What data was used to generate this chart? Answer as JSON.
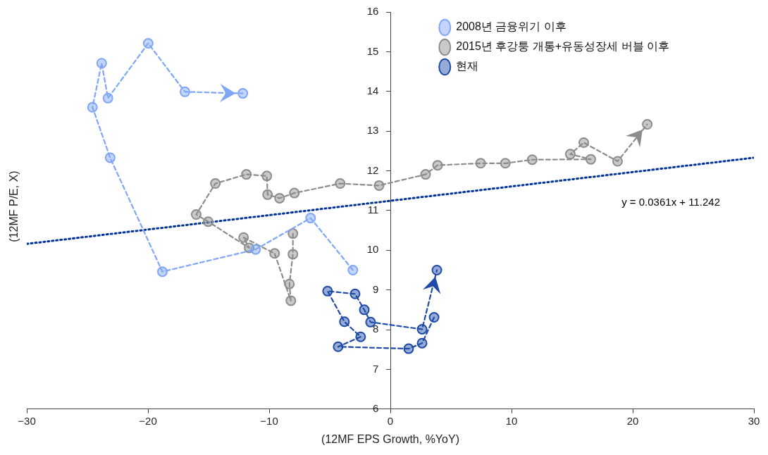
{
  "chart_data": {
    "type": "line",
    "xlabel": "(12MF EPS Growth, %YoY)",
    "ylabel": "(12MF P/E, X)",
    "xlim": [
      -30,
      30
    ],
    "xticks": [
      {
        "value": -30,
        "label": "−30"
      },
      {
        "value": -20,
        "label": "−20"
      },
      {
        "value": -10,
        "label": "−10"
      },
      0,
      10,
      20,
      30
    ],
    "ylim": [
      6,
      16
    ],
    "yticks": [
      6,
      7,
      8,
      9,
      10,
      11,
      12,
      13,
      14,
      15,
      16
    ],
    "grid": false,
    "legend": "top right",
    "marker": "circle",
    "line_style": "dashed",
    "series": [
      {
        "name": "2008년 금융위기 이후",
        "color": "#7fa6f7",
        "x": [
          -3.09,
          -6.58,
          -11.12,
          -18.81,
          -23.12,
          -24.58,
          -23.82,
          -23.3,
          -19.98,
          -16.95,
          -12.17
        ],
        "values": [
          9.5,
          10.81,
          10.02,
          9.46,
          12.33,
          13.6,
          14.71,
          13.83,
          15.21,
          13.99,
          13.95
        ]
      },
      {
        "name": "2015년 후강퉁 개통+유동성장세 버블 이후",
        "color": "#8c8c8c",
        "x": [
          -8.04,
          -8.04,
          -8.33,
          -8.21,
          -9.55,
          -12.11,
          -11.65,
          -15.03,
          -16.02,
          -14.44,
          -11.88,
          -10.19,
          -10.13,
          -9.14,
          -7.92,
          -4.14,
          -0.93,
          2.91,
          3.9,
          7.45,
          9.49,
          11.71,
          16.54,
          14.85,
          15.96,
          18.75,
          21.2
        ],
        "values": [
          10.42,
          9.9,
          9.15,
          8.73,
          9.92,
          10.32,
          10.06,
          10.72,
          10.9,
          11.68,
          11.91,
          11.87,
          11.4,
          11.31,
          11.44,
          11.68,
          11.63,
          11.91,
          12.14,
          12.19,
          12.19,
          12.28,
          12.29,
          12.42,
          12.71,
          12.24,
          13.17
        ]
      },
      {
        "name": "현재",
        "color": "#1f4aa8",
        "x": [
          3.61,
          2.62,
          1.51,
          -4.31,
          -2.45,
          -3.79,
          -5.18,
          -2.91,
          -2.15,
          -1.63,
          2.62,
          3.84
        ],
        "values": [
          8.31,
          7.66,
          7.52,
          7.57,
          7.82,
          8.2,
          8.97,
          8.9,
          8.5,
          8.19,
          8.01,
          9.5
        ]
      },
      {
        "type": "line",
        "color": "#003399",
        "x": [
          -30,
          30
        ],
        "values": [
          10.16,
          12.33
        ],
        "marker": "none",
        "line_style": "dotted"
      }
    ],
    "annotations": [
      "y = 0.0361x + 11.242"
    ]
  }
}
